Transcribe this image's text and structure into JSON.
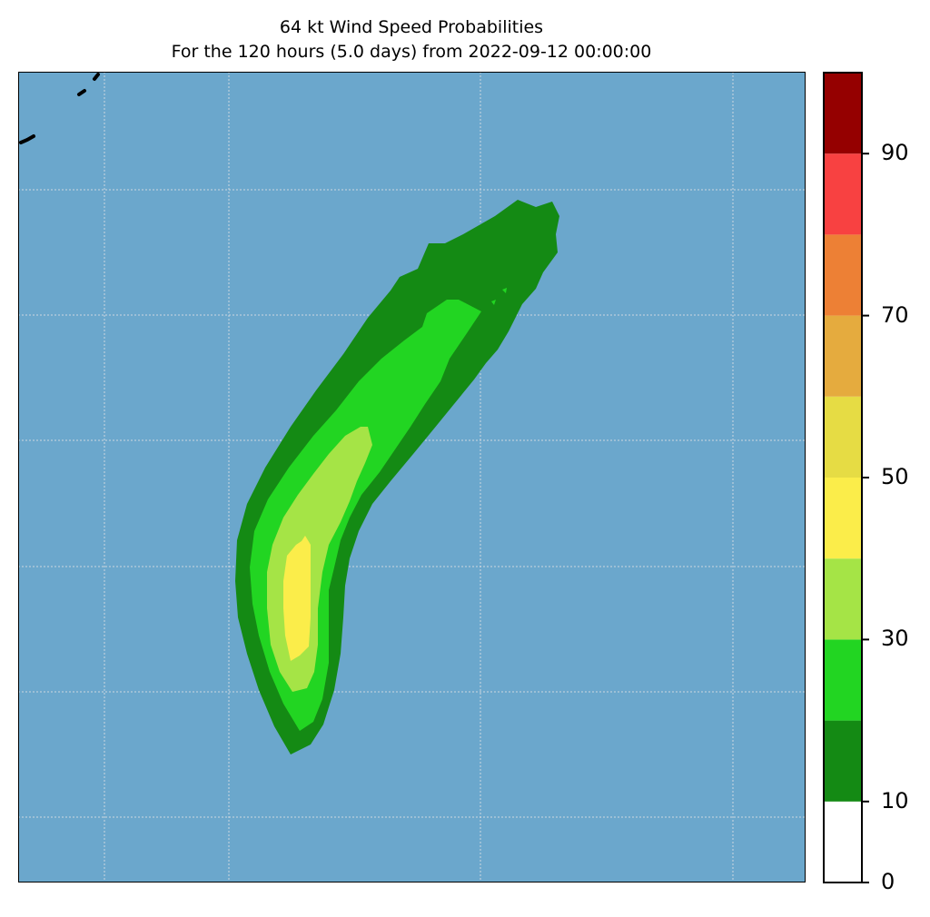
{
  "title": {
    "line1": "64 kt Wind Speed Probabilities",
    "line2": "For the 120 hours (5.0 days) from 2022-09-12 00:00:00"
  },
  "colorbar": {
    "levels": [
      0,
      10,
      20,
      30,
      40,
      50,
      60,
      70,
      80,
      90,
      100
    ],
    "band_colors": [
      "#ffffff",
      "#148a14",
      "#22d522",
      "#a5e446",
      "#fbed4a",
      "#e6dc44",
      "#e5ab3e",
      "#ed8035",
      "#f84141",
      "#950000",
      "#8127d9"
    ],
    "tick_labels": [
      "0",
      "10",
      "30",
      "50",
      "70",
      "90"
    ]
  },
  "map": {
    "ocean_color": "#6ba7cc",
    "contour_colors": [
      "#148a14",
      "#22d522",
      "#a5e446",
      "#fbed4a"
    ],
    "gridlines": true
  }
}
